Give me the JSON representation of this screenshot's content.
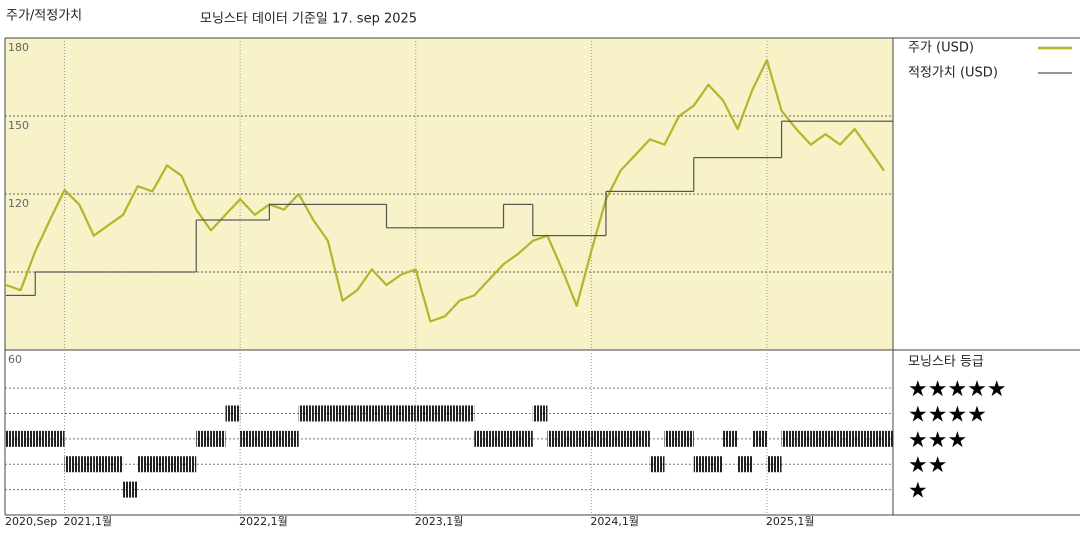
{
  "chart_data": [
    {
      "type": "line",
      "title": "주가/적정가치",
      "subtitle": "모닝스타 데이터 기준일 17. sep 2025",
      "x": [
        "2020-09",
        "2020-10",
        "2020-11",
        "2020-12",
        "2021-01",
        "2021-02",
        "2021-03",
        "2021-04",
        "2021-05",
        "2021-06",
        "2021-07",
        "2021-08",
        "2021-09",
        "2021-10",
        "2021-11",
        "2021-12",
        "2022-01",
        "2022-02",
        "2022-03",
        "2022-04",
        "2022-05",
        "2022-06",
        "2022-07",
        "2022-08",
        "2022-09",
        "2022-10",
        "2022-11",
        "2022-12",
        "2023-01",
        "2023-02",
        "2023-03",
        "2023-04",
        "2023-05",
        "2023-06",
        "2023-07",
        "2023-08",
        "2023-09",
        "2023-10",
        "2023-11",
        "2023-12",
        "2024-01",
        "2024-02",
        "2024-03",
        "2024-04",
        "2024-05",
        "2024-06",
        "2024-07",
        "2024-08",
        "2024-09",
        "2024-10",
        "2024-11",
        "2024-12",
        "2025-01",
        "2025-02",
        "2025-03",
        "2025-04",
        "2025-05",
        "2025-06",
        "2025-07",
        "2025-08",
        "2025-09"
      ],
      "series": [
        {
          "name": "주가 (USD)",
          "color": "#b3b52b",
          "step": false,
          "values": [
            85,
            83,
            98,
            110,
            121.5,
            116,
            104,
            108,
            112,
            123,
            121,
            131,
            127,
            114,
            106,
            112,
            118,
            112,
            116,
            114,
            120,
            110,
            102,
            79,
            83,
            91,
            85,
            89,
            91,
            71,
            73,
            79,
            81,
            87,
            93,
            97,
            102,
            104,
            91,
            77,
            98,
            118,
            129,
            135,
            141,
            139,
            150,
            154,
            162,
            156,
            145,
            160,
            171.5,
            152,
            145,
            139,
            143,
            139,
            145,
            137,
            129
          ]
        },
        {
          "name": "적정가치 (USD)",
          "color": "#555555",
          "step": true,
          "values": [
            81,
            81,
            90,
            90,
            90,
            90,
            90,
            90,
            90,
            90,
            90,
            90,
            90,
            110,
            110,
            110,
            110,
            110,
            116,
            116,
            116,
            116,
            116,
            116,
            116,
            116,
            107,
            107,
            107,
            107,
            107,
            107,
            107,
            107,
            116,
            116,
            104,
            104,
            104,
            104,
            104,
            121,
            121,
            121,
            121,
            121,
            121,
            134,
            134,
            134,
            134,
            134,
            134,
            148,
            148,
            148,
            148,
            148,
            148,
            148,
            148
          ]
        }
      ],
      "xlim": [
        "2020-09",
        "2025-09"
      ],
      "xticks": [
        {
          "value": "2020-09",
          "label": "2020,Sep"
        },
        {
          "value": "2021-01",
          "label": "2021,1월"
        },
        {
          "value": "2022-01",
          "label": "2022,1월"
        },
        {
          "value": "2023-01",
          "label": "2023,1월"
        },
        {
          "value": "2024-01",
          "label": "2024,1월"
        },
        {
          "value": "2025-01",
          "label": "2025,1월"
        }
      ],
      "ylim": [
        60,
        180
      ],
      "yticks": [
        60,
        {
          "value": 90,
          "label": null
        },
        120,
        150,
        180
      ],
      "grid": true,
      "background": "#f7f2c8"
    },
    {
      "type": "rating",
      "title": "모닝스타 등급",
      "values": [
        3,
        3,
        3,
        3,
        2,
        2,
        2,
        2,
        1,
        2,
        2,
        2,
        2,
        3,
        3,
        4,
        3,
        3,
        3,
        3,
        4,
        4,
        4,
        4,
        4,
        4,
        4,
        4,
        4,
        4,
        4,
        4,
        3,
        3,
        3,
        3,
        4,
        3,
        3,
        3,
        3,
        3,
        3,
        3,
        2,
        3,
        3,
        2,
        2,
        3,
        2,
        3,
        2,
        3,
        3,
        3,
        3,
        3,
        3,
        3,
        3
      ],
      "ylim": [
        0,
        6.5
      ],
      "yticks": [
        {
          "value": 5,
          "label": "★★★★★"
        },
        {
          "value": 4,
          "label": "★★★★"
        },
        {
          "value": 3,
          "label": "★★★"
        },
        {
          "value": 2,
          "label": "★★"
        },
        {
          "value": 1,
          "label": "★"
        }
      ],
      "color": "#222222"
    }
  ]
}
